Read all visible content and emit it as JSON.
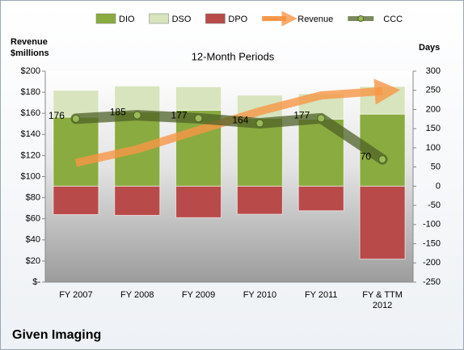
{
  "chart_data": {
    "type": "bar",
    "title": "12-Month Periods",
    "ylabel": [
      "Revenue",
      "$millions"
    ],
    "y2label": "Days",
    "footer": "Given Imaging",
    "categories": [
      "FY 2007",
      "FY 2008",
      "FY 2009",
      "FY 2010",
      "FY 2011",
      "FY & TTM 2012"
    ],
    "ylim": [
      0,
      200
    ],
    "yticks": [
      {
        "value": 0,
        "label": "$-"
      },
      {
        "value": 20,
        "label": "$20"
      },
      {
        "value": 40,
        "label": "$40"
      },
      {
        "value": 60,
        "label": "$60"
      },
      {
        "value": 80,
        "label": "$80"
      },
      {
        "value": 100,
        "label": "$100"
      },
      {
        "value": 120,
        "label": "$120"
      },
      {
        "value": 140,
        "label": "$140"
      },
      {
        "value": 160,
        "label": "$160"
      },
      {
        "value": 180,
        "label": "$180"
      },
      {
        "value": 200,
        "label": "$200"
      }
    ],
    "y2lim": [
      -250,
      300
    ],
    "y2ticks": [
      -250,
      -200,
      -150,
      -100,
      -50,
      0,
      50,
      100,
      150,
      200,
      250,
      300
    ],
    "series": [
      {
        "name": "DIO",
        "type": "bar",
        "axis": "y2",
        "color": "#8aab3f",
        "values": [
          180,
          194,
          198,
          177,
          175,
          188
        ]
      },
      {
        "name": "DSO",
        "type": "bar",
        "axis": "y2",
        "color": "#d7e4bd",
        "values": [
          70,
          67,
          61,
          60,
          66,
          72
        ]
      },
      {
        "name": "DPO",
        "type": "bar",
        "axis": "y2",
        "color": "#b84b4a",
        "values": [
          -74,
          -76,
          -82,
          -73,
          -64,
          -190
        ]
      },
      {
        "name": "Revenue",
        "type": "arrow",
        "color": "#f79646",
        "values": [
          113,
          126,
          144,
          162,
          177,
          181
        ]
      },
      {
        "name": "CCC",
        "type": "line",
        "axis": "y2",
        "color": "#4f6228",
        "values": [
          176,
          185,
          177,
          164,
          177,
          70
        ]
      }
    ]
  }
}
